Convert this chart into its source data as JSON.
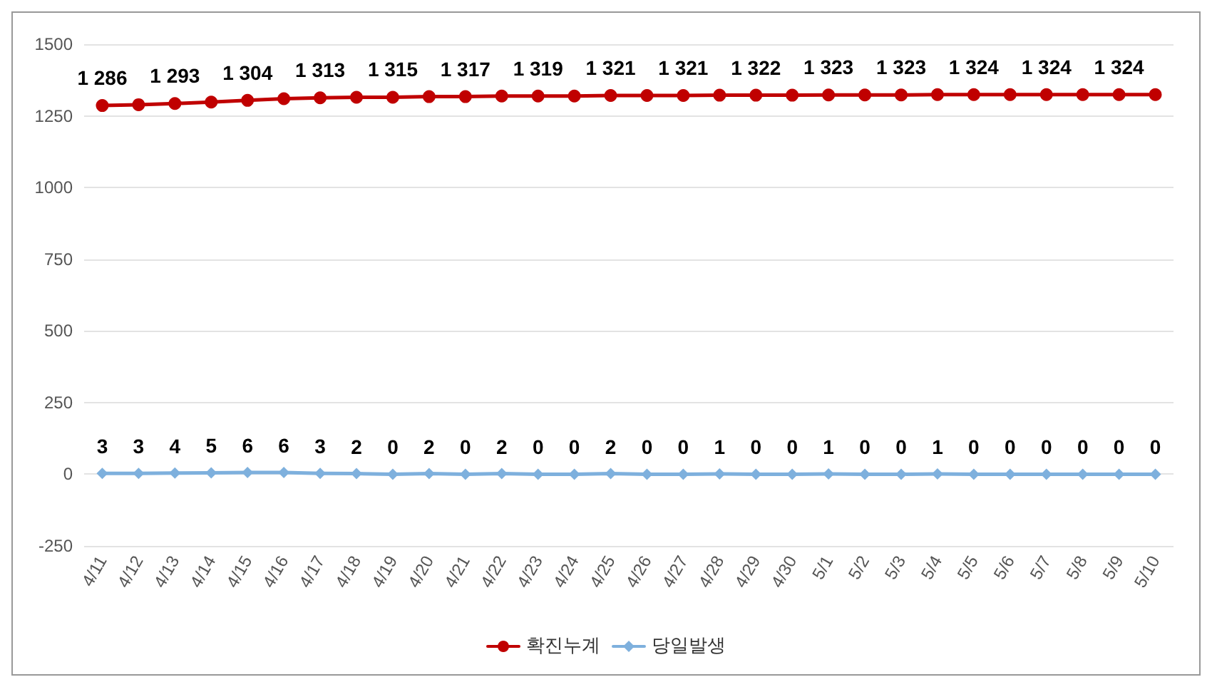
{
  "chart_data": {
    "type": "line",
    "categories": [
      "4/11",
      "4/12",
      "4/13",
      "4/14",
      "4/15",
      "4/16",
      "4/17",
      "4/18",
      "4/19",
      "4/20",
      "4/21",
      "4/22",
      "4/23",
      "4/24",
      "4/25",
      "4/26",
      "4/27",
      "4/28",
      "4/29",
      "4/30",
      "5/1",
      "5/2",
      "5/3",
      "5/4",
      "5/5",
      "5/6",
      "5/7",
      "5/8",
      "5/9",
      "5/10"
    ],
    "series": [
      {
        "name": "확진누계",
        "color": "#c00000",
        "marker": "circle",
        "values": [
          1286,
          1289,
          1293,
          1298,
          1304,
          1310,
          1313,
          1315,
          1315,
          1317,
          1317,
          1319,
          1319,
          1319,
          1321,
          1321,
          1321,
          1322,
          1322,
          1322,
          1323,
          1323,
          1323,
          1324,
          1324,
          1324,
          1324,
          1324,
          1324,
          1324
        ],
        "value_labels": [
          "1 286",
          null,
          "1 293",
          null,
          "1 304",
          null,
          "1 313",
          null,
          "1 315",
          null,
          "1 317",
          null,
          "1 319",
          null,
          "1 321",
          null,
          "1 321",
          null,
          "1 322",
          null,
          "1 323",
          null,
          "1 323",
          null,
          "1 324",
          null,
          "1 324",
          null,
          "1 324",
          null
        ]
      },
      {
        "name": "당일발생",
        "color": "#7eb0dd",
        "marker": "diamond",
        "values": [
          3,
          3,
          4,
          5,
          6,
          6,
          3,
          2,
          0,
          2,
          0,
          2,
          0,
          0,
          2,
          0,
          0,
          1,
          0,
          0,
          1,
          0,
          0,
          1,
          0,
          0,
          0,
          0,
          0,
          0
        ],
        "value_labels": [
          "3",
          "3",
          "4",
          "5",
          "6",
          "6",
          "3",
          "2",
          "0",
          "2",
          "0",
          "2",
          "0",
          "0",
          "2",
          "0",
          "0",
          "1",
          "0",
          "0",
          "1",
          "0",
          "0",
          "1",
          "0",
          "0",
          "0",
          "0",
          "0",
          "0"
        ]
      }
    ],
    "ylim": [
      -250,
      1500
    ],
    "yticks": [
      -250,
      0,
      250,
      500,
      750,
      1000,
      1250,
      1500
    ],
    "grid": "y",
    "legend": "bottom",
    "line_style": "solid"
  }
}
